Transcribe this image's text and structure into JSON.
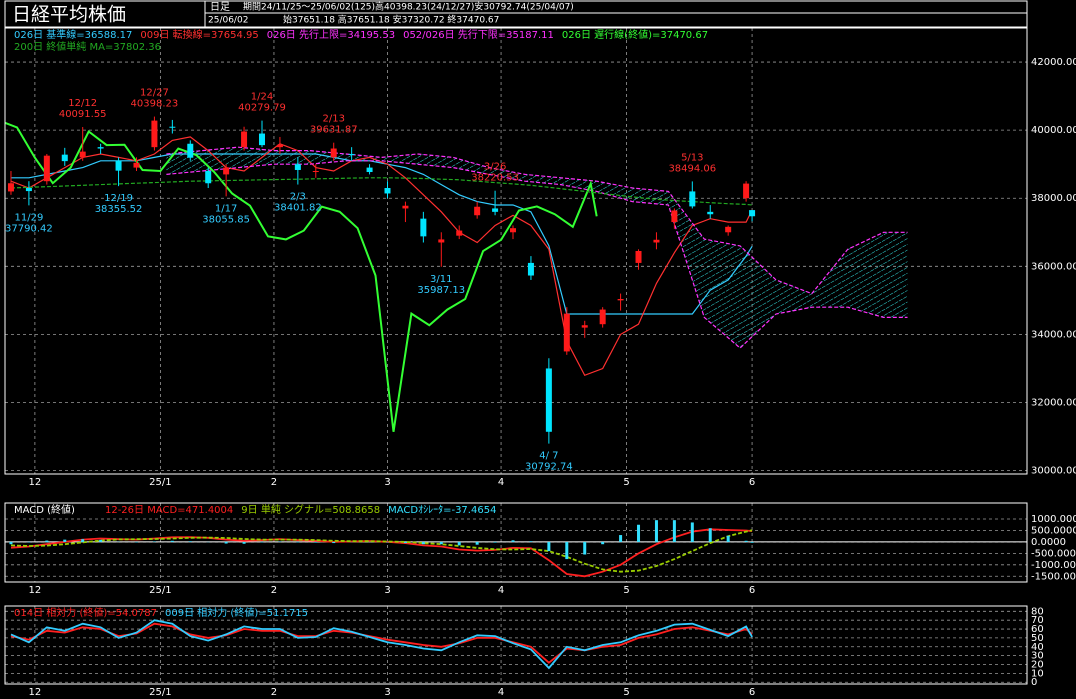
{
  "header": {
    "title": "日経平均株価",
    "frame": "日足",
    "period": "期間24/11/25～25/06/02(125)高40398.23(24/12/27)安30792.74(25/04/07)",
    "date": "25/06/02",
    "ohlc": "始37651.18 高37651.18 安37320.72 終37470.67"
  },
  "chart_data": [
    {
      "type": "candlestick",
      "xlim": [
        -1,
        170
      ],
      "xticks": [
        {
          "value": 4,
          "label": "12"
        },
        {
          "value": 25,
          "label": "25/1"
        },
        {
          "value": 44,
          "label": "2"
        },
        {
          "value": 63,
          "label": "3"
        },
        {
          "value": 82,
          "label": "4"
        },
        {
          "value": 103,
          "label": "5"
        },
        {
          "value": 124,
          "label": "6"
        }
      ],
      "ylim": [
        29900,
        43000
      ],
      "yticks": [
        {
          "value": 30000,
          "label": "30000.00"
        },
        {
          "value": 32000,
          "label": "32000.00"
        },
        {
          "value": 34000,
          "label": "34000.00"
        },
        {
          "value": 36000,
          "label": "36000.00"
        },
        {
          "value": 38000,
          "label": "38000.00"
        },
        {
          "value": 40000,
          "label": "40000.00"
        },
        {
          "value": 42000,
          "label": "42000.00"
        }
      ],
      "grid": true,
      "up_color": "#ff1a1a",
      "down_color": "#00e5ff",
      "candles": {
        "x": [
          0,
          3,
          6,
          9,
          12,
          15,
          18,
          21,
          24,
          27,
          30,
          33,
          36,
          39,
          42,
          45,
          48,
          51,
          54,
          57,
          60,
          63,
          66,
          69,
          72,
          75,
          78,
          81,
          84,
          87,
          90,
          93,
          96,
          99,
          102,
          105,
          108,
          111,
          114,
          117,
          120,
          123,
          124
        ],
        "open": [
          38200,
          38300,
          38500,
          39280,
          39200,
          39500,
          39100,
          38900,
          39500,
          40100,
          39600,
          38800,
          38700,
          39500,
          39900,
          39500,
          39000,
          38800,
          39200,
          39300,
          38900,
          38300,
          37700,
          37400,
          36700,
          36900,
          37500,
          37700,
          37000,
          36100,
          33000,
          33500,
          34200,
          34300,
          35000,
          36100,
          36700,
          37300,
          38200,
          37600,
          37000,
          38000,
          37651.18
        ],
        "high": [
          38800,
          38500,
          39300,
          39480,
          40091.55,
          39600,
          39200,
          39200,
          40398.23,
          40300,
          39700,
          38900,
          39000,
          40100,
          40279.79,
          39800,
          39200,
          39000,
          39631.87,
          39500,
          39000,
          38500,
          37900,
          37600,
          37000,
          37200,
          37900,
          38220.53,
          37200,
          36300,
          33300,
          34800,
          34400,
          34800,
          35200,
          36500,
          37000,
          37700,
          38494.06,
          37800,
          37200,
          38500,
          37651.18
        ],
        "low": [
          38100,
          37790.42,
          38400,
          38950,
          39100,
          39300,
          38355.52,
          38800,
          39400,
          39900,
          39100,
          38300,
          38055.85,
          39400,
          39500,
          39300,
          38401.82,
          38600,
          39100,
          39100,
          38700,
          38000,
          37300,
          36700,
          35987.13,
          36800,
          37400,
          37500,
          36800,
          35600,
          30792.74,
          33400,
          33900,
          34200,
          34700,
          35900,
          36500,
          37100,
          37700,
          37400,
          36900,
          37900,
          37320.72
        ],
        "close": [
          38440,
          38210,
          39250,
          39090,
          39370,
          39460,
          38810,
          39040,
          40280,
          40080,
          39190,
          38440,
          38900,
          39960,
          39560,
          39570,
          38830,
          38800,
          39460,
          39270,
          38770,
          38140,
          37780,
          36880,
          36790,
          37050,
          37750,
          37600,
          37120,
          35730,
          31140,
          34610,
          34270,
          34730,
          35040,
          36450,
          36780,
          37640,
          37760,
          37530,
          37160,
          38430,
          37470.67
        ]
      },
      "series": [
        {
          "name": "026日 基準線=36588.17",
          "color": "#33ccff",
          "values": [
            38600,
            38600,
            38700,
            38800,
            38900,
            39100,
            39100,
            39100,
            39200,
            39300,
            39300,
            39300,
            39300,
            39300,
            39300,
            39300,
            39300,
            39300,
            39200,
            39100,
            39100,
            39000,
            38900,
            38700,
            38400,
            38100,
            37900,
            37800,
            37800,
            37600,
            36600,
            34600,
            34600,
            34600,
            34600,
            34600,
            34600,
            34600,
            34600,
            35300,
            35600,
            36300,
            36588.17
          ]
        },
        {
          "name": "009日 転換線=37654.95",
          "color": "#ff3030",
          "values": [
            38500,
            38300,
            38600,
            38900,
            39200,
            39300,
            39200,
            39100,
            39300,
            39700,
            39800,
            39400,
            38900,
            38800,
            39200,
            39600,
            39400,
            38900,
            38800,
            39100,
            39200,
            39000,
            38600,
            38100,
            37600,
            37000,
            36700,
            37200,
            37500,
            37200,
            36500,
            33800,
            32800,
            33000,
            34000,
            34300,
            35500,
            36400,
            37200,
            37400,
            37300,
            37300,
            37654.95
          ]
        },
        {
          "name": "026日 先行上限=34195.53",
          "color": "#ff33ff",
          "dash": true,
          "x": [
            26,
            32,
            38,
            44,
            50,
            56,
            62,
            68,
            74,
            80,
            86,
            92,
            98,
            104,
            110,
            116,
            122,
            128,
            134,
            140,
            146,
            150
          ],
          "values": [
            39300,
            39400,
            39500,
            39400,
            39400,
            39300,
            39200,
            39300,
            39200,
            38900,
            38700,
            38600,
            38500,
            38300,
            38200,
            36800,
            36600,
            35600,
            35200,
            36500,
            37000,
            37000
          ]
        },
        {
          "name": "052/026日 先行下限=35187.11",
          "color": "#ff33ff",
          "dash": true,
          "x": [
            26,
            32,
            38,
            44,
            50,
            56,
            62,
            68,
            74,
            80,
            86,
            92,
            98,
            104,
            110,
            116,
            122,
            128,
            134,
            140,
            146,
            150
          ],
          "values": [
            38700,
            38800,
            38900,
            39000,
            39000,
            39100,
            39100,
            39000,
            38900,
            38700,
            38500,
            38400,
            38200,
            37900,
            37800,
            34500,
            33600,
            34600,
            34800,
            34800,
            34500,
            34500
          ]
        },
        {
          "name": "026日 遅行線(終値)=37470.67",
          "color": "#33ff33"
        },
        {
          "name": "200日 終値単純 MA=37802.36",
          "color": "#22aa22",
          "dash": true,
          "values": [
            38300,
            38320,
            38340,
            38360,
            38380,
            38400,
            38420,
            38440,
            38460,
            38480,
            38500,
            38510,
            38520,
            38530,
            38540,
            38550,
            38560,
            38570,
            38580,
            38590,
            38600,
            38600,
            38590,
            38580,
            38560,
            38540,
            38500,
            38460,
            38420,
            38380,
            38320,
            38260,
            38200,
            38140,
            38080,
            38020,
            37970,
            37930,
            37900,
            37870,
            37840,
            37820,
            37802.36
          ]
        }
      ],
      "annotations": [
        {
          "date": "11/29",
          "value": 37790.42
        },
        {
          "date": "12/12",
          "value": 40091.55
        },
        {
          "date": "12/19",
          "value": 38355.52
        },
        {
          "date": "12/27",
          "value": 40398.23
        },
        {
          "date": "1/17",
          "value": 38055.85
        },
        {
          "date": "1/24",
          "value": 40279.79
        },
        {
          "date": "2/3",
          "value": 38401.82
        },
        {
          "date": "2/13",
          "value": 39631.87
        },
        {
          "date": "3/11",
          "value": 35987.13
        },
        {
          "date": "3/26",
          "value": 38220.53
        },
        {
          "date": "4/ 7",
          "value": 30792.74
        },
        {
          "date": "5/13",
          "value": 38494.06
        }
      ]
    },
    {
      "type": "line",
      "title": "MACD (終値)",
      "x": [
        0,
        3,
        6,
        9,
        12,
        15,
        18,
        21,
        24,
        27,
        30,
        33,
        36,
        39,
        42,
        45,
        48,
        51,
        54,
        57,
        60,
        63,
        66,
        69,
        72,
        75,
        78,
        81,
        84,
        87,
        90,
        93,
        96,
        99,
        102,
        105,
        108,
        111,
        114,
        117,
        120,
        123,
        124
      ],
      "xlim": [
        -1,
        170
      ],
      "xticks": [
        {
          "value": 4,
          "label": "12"
        },
        {
          "value": 25,
          "label": "25/1"
        },
        {
          "value": 44,
          "label": "2"
        },
        {
          "value": 63,
          "label": "3"
        },
        {
          "value": 82,
          "label": "4"
        },
        {
          "value": 103,
          "label": "5"
        },
        {
          "value": 124,
          "label": "6"
        }
      ],
      "ylim": [
        -1750,
        1700
      ],
      "yticks": [
        {
          "value": -1500,
          "label": "-1500.0000"
        },
        {
          "value": -1000,
          "label": "-1000.0000"
        },
        {
          "value": -500,
          "label": "-500.0000"
        },
        {
          "value": 0,
          "label": "0.0000"
        },
        {
          "value": 500,
          "label": "500.0000"
        },
        {
          "value": 1000,
          "label": "1000.0000"
        }
      ],
      "grid": true,
      "series": [
        {
          "name": "12-26日 MACD=471.4004",
          "color": "#ff2020",
          "values": [
            -250,
            -200,
            -100,
            0,
            100,
            150,
            120,
            100,
            150,
            200,
            210,
            180,
            100,
            50,
            80,
            120,
            80,
            50,
            0,
            20,
            40,
            0,
            -50,
            -150,
            -200,
            -330,
            -380,
            -350,
            -260,
            -280,
            -800,
            -1400,
            -1500,
            -1300,
            -1000,
            -500,
            -100,
            200,
            450,
            550,
            520,
            500,
            471.4004
          ]
        },
        {
          "name": "9日 単純 シグナル=508.8658",
          "color": "#99cc00",
          "dash": true,
          "values": [
            -150,
            -180,
            -160,
            -100,
            -20,
            60,
            110,
            120,
            130,
            150,
            180,
            190,
            170,
            130,
            100,
            100,
            100,
            80,
            50,
            30,
            30,
            20,
            0,
            -50,
            -100,
            -180,
            -260,
            -320,
            -330,
            -310,
            -400,
            -650,
            -950,
            -1200,
            -1300,
            -1250,
            -1050,
            -750,
            -400,
            -50,
            250,
            450,
            508.8658
          ]
        },
        {
          "name": "MACDｵｼﾚｰﾀ=-37.4654",
          "color": "#33e0ff",
          "style": "bar",
          "values": [
            -100,
            -20,
            60,
            100,
            120,
            90,
            10,
            -20,
            20,
            50,
            30,
            -10,
            -70,
            -80,
            -20,
            20,
            -20,
            -30,
            -50,
            -10,
            10,
            -20,
            -50,
            -100,
            -100,
            -150,
            -120,
            -30,
            70,
            30,
            -400,
            -750,
            -550,
            -100,
            300,
            750,
            950,
            950,
            850,
            600,
            270,
            50,
            -37.4654
          ]
        }
      ]
    },
    {
      "type": "line",
      "x": [
        0,
        3,
        6,
        9,
        12,
        15,
        18,
        21,
        24,
        27,
        30,
        33,
        36,
        39,
        42,
        45,
        48,
        51,
        54,
        57,
        60,
        63,
        66,
        69,
        72,
        75,
        78,
        81,
        84,
        87,
        90,
        93,
        96,
        99,
        102,
        105,
        108,
        111,
        114,
        117,
        120,
        123,
        124
      ],
      "xlim": [
        -1,
        170
      ],
      "xticks": [
        {
          "value": 4,
          "label": "12"
        },
        {
          "value": 25,
          "label": "25/1"
        },
        {
          "value": 44,
          "label": "2"
        },
        {
          "value": 63,
          "label": "3"
        },
        {
          "value": 82,
          "label": "4"
        },
        {
          "value": 103,
          "label": "5"
        },
        {
          "value": 124,
          "label": "6"
        }
      ],
      "ylim": [
        -2,
        86
      ],
      "yticks": [
        0,
        10,
        20,
        30,
        40,
        50,
        60,
        70,
        80
      ],
      "grid": true,
      "series": [
        {
          "name": "014日 相対力 (終値)=54.0787",
          "color": "#ff2020",
          "values": [
            52,
            48,
            58,
            56,
            62,
            60,
            52,
            55,
            66,
            63,
            54,
            50,
            53,
            60,
            58,
            58,
            52,
            52,
            58,
            56,
            52,
            48,
            45,
            42,
            40,
            44,
            50,
            50,
            45,
            40,
            22,
            38,
            36,
            40,
            42,
            50,
            54,
            60,
            62,
            58,
            54,
            60,
            54.0787
          ]
        },
        {
          "name": "009日 相対力 (終値)=51.1715",
          "color": "#33ccff",
          "values": [
            54,
            45,
            62,
            58,
            66,
            62,
            50,
            56,
            70,
            66,
            52,
            47,
            54,
            63,
            60,
            60,
            50,
            51,
            61,
            57,
            51,
            45,
            42,
            38,
            36,
            45,
            53,
            52,
            44,
            37,
            16,
            40,
            36,
            42,
            45,
            53,
            58,
            65,
            66,
            59,
            52,
            63,
            51.1715
          ]
        }
      ]
    }
  ]
}
